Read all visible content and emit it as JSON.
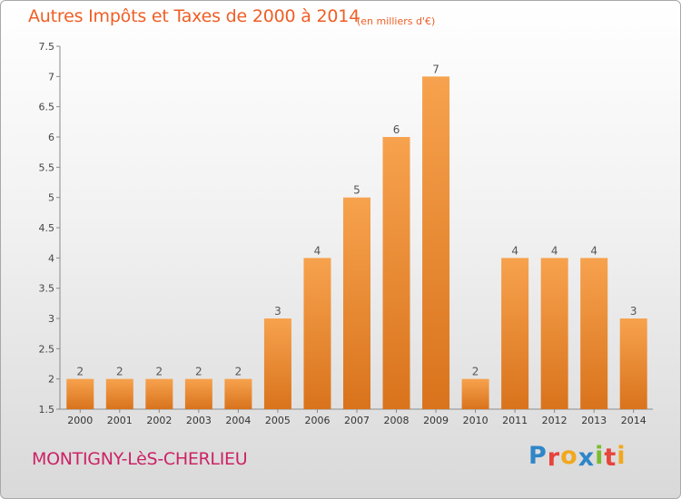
{
  "chart_data": {
    "type": "bar",
    "title": "Autres Impôts et Taxes de 2000 à 2014",
    "subtitle": "(en milliers d'€)",
    "categories": [
      "2000",
      "2001",
      "2002",
      "2003",
      "2004",
      "2005",
      "2006",
      "2007",
      "2008",
      "2009",
      "2010",
      "2011",
      "2012",
      "2013",
      "2014"
    ],
    "values": [
      2,
      2,
      2,
      2,
      2,
      3,
      4,
      5,
      6,
      7,
      2,
      4,
      4,
      4,
      3
    ],
    "data_labels": [
      "2",
      "2",
      "2",
      "2",
      "2",
      "3",
      "4",
      "5",
      "6",
      "7",
      "2",
      "4",
      "4",
      "4",
      "3"
    ],
    "ylim": [
      1.5,
      7.5
    ],
    "yticks": [
      "1.5",
      "2",
      "2.5",
      "3",
      "3.5",
      "4",
      "4.5",
      "5",
      "5.5",
      "6",
      "6.5",
      "7",
      "7.5"
    ],
    "grid": false,
    "bar_color_top": "#f7a24e",
    "bar_color_bottom": "#d9731c"
  },
  "footer": {
    "commune": "MONTIGNY-LèS-CHERLIEU"
  },
  "logo": {
    "text": "Proxiti",
    "letters": [
      {
        "char": "P",
        "color": "#2f86c8"
      },
      {
        "char": "r",
        "color": "#e7443a"
      },
      {
        "char": "o",
        "color": "#f2a81d"
      },
      {
        "char": "x",
        "color": "#2f86c8"
      },
      {
        "char": "i",
        "color": "#7cbb2e"
      },
      {
        "char": "t",
        "color": "#e7443a"
      },
      {
        "char": "i",
        "color": "#f2a81d"
      }
    ]
  }
}
